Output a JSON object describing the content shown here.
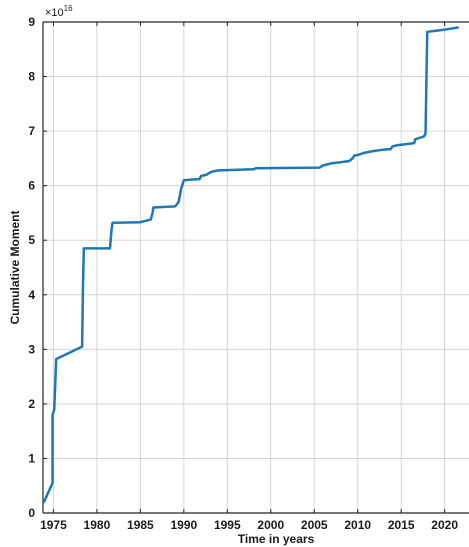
{
  "chart_data": {
    "type": "line",
    "title": "",
    "xlabel": "Time in years",
    "ylabel": "Cumulative Moment",
    "y_exponent_base": "×10",
    "y_exponent_power": "16",
    "xlim": [
      1973.8,
      2022.8
    ],
    "ylim": [
      0,
      9
    ],
    "x_ticks": [
      1975,
      1980,
      1985,
      1990,
      1995,
      2000,
      2005,
      2010,
      2015,
      2020
    ],
    "x_tick_labels": [
      "1975",
      "1980",
      "1985",
      "1990",
      "1995",
      "2000",
      "2005",
      "2010",
      "2015",
      "2020"
    ],
    "y_ticks": [
      0,
      1,
      2,
      3,
      4,
      5,
      6,
      7,
      8,
      9
    ],
    "y_tick_labels": [
      "0",
      "1",
      "2",
      "3",
      "4",
      "5",
      "6",
      "7",
      "8",
      "9"
    ],
    "grid": true,
    "line_color": "#1f77b4",
    "series": [
      {
        "x": [
          1973.9,
          1974.9,
          1974.9,
          1975.1,
          1975.1,
          1975.3,
          1975.3,
          1978.3,
          1978.4,
          1978.5,
          1981.5,
          1981.7,
          1981.8,
          1985.0,
          1986.2,
          1986.4,
          1986.5,
          1989.0,
          1989.4,
          1989.7,
          1990.0,
          1991.6,
          1991.8,
          1992.0,
          1992.6,
          1992.8,
          1993.0,
          1993.3,
          1994.0,
          1998.0,
          1998.3,
          2005.6,
          2006.0,
          2006.5,
          2007.0,
          2008.0,
          2009.0,
          2009.4,
          2009.6,
          2010.2,
          2010.5,
          2011.0,
          2012.0,
          2013.0,
          2013.8,
          2014.0,
          2014.5,
          2015.0,
          2016.5,
          2016.6,
          2017.6,
          2017.8,
          2017.9,
          2018.0,
          2019.0,
          2020.0,
          2020.8,
          2021.5
        ],
        "y": [
          0.2,
          0.55,
          1.8,
          1.9,
          1.92,
          2.75,
          2.82,
          3.05,
          4.2,
          4.85,
          4.85,
          5.22,
          5.32,
          5.33,
          5.38,
          5.5,
          5.6,
          5.62,
          5.7,
          5.95,
          6.1,
          6.12,
          6.12,
          6.18,
          6.2,
          6.22,
          6.24,
          6.26,
          6.28,
          6.3,
          6.32,
          6.33,
          6.37,
          6.39,
          6.41,
          6.43,
          6.45,
          6.5,
          6.55,
          6.57,
          6.59,
          6.61,
          6.64,
          6.66,
          6.67,
          6.72,
          6.74,
          6.75,
          6.78,
          6.85,
          6.9,
          6.95,
          7.9,
          8.82,
          8.84,
          8.86,
          8.88,
          8.9
        ]
      }
    ]
  }
}
